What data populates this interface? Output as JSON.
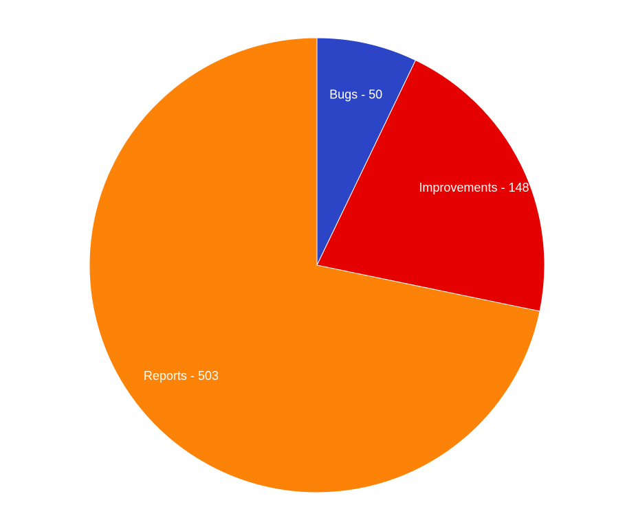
{
  "chart_data": {
    "type": "pie",
    "title": "",
    "slices": [
      {
        "label": "Bugs",
        "value": 50,
        "display": "Bugs - 50",
        "color": "#2b45c6"
      },
      {
        "label": "Improvements",
        "value": 148,
        "display": "Improvements - 148",
        "color": "#e50000"
      },
      {
        "label": "Reports",
        "value": 503,
        "display": "Reports - 503",
        "color": "#fd8208"
      }
    ],
    "start_angle": "12 o'clock",
    "direction": "clockwise",
    "legend": "none",
    "labels": "inside slices"
  }
}
